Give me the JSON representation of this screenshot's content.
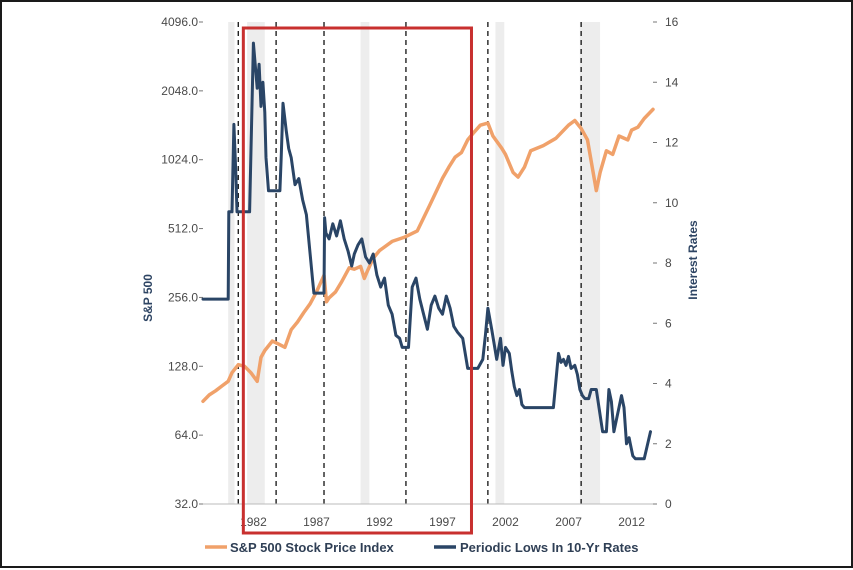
{
  "chart_data": {
    "type": "line",
    "title": "",
    "x_ticks": [
      "1982",
      "1987",
      "1992",
      "1997",
      "2002",
      "2007",
      "2012"
    ],
    "xlim": [
      1978.0,
      2013.7
    ],
    "y_left": {
      "label": "S&P 500",
      "scale": "log2",
      "ylim": [
        32,
        4096
      ],
      "ticks": [
        "32.0",
        "64.0",
        "128.0",
        "256.0",
        "512.0",
        "1024.0",
        "2048.0",
        "4096.0"
      ],
      "tick_values": [
        32,
        64,
        128,
        256,
        512,
        1024,
        2048,
        4096
      ]
    },
    "y_right": {
      "label": "Interest Rates",
      "ylim": [
        0,
        16
      ],
      "ticks": [
        "0",
        "2",
        "4",
        "6",
        "8",
        "10",
        "12",
        "14",
        "16"
      ],
      "tick_values": [
        0,
        2,
        4,
        6,
        8,
        10,
        12,
        14,
        16
      ]
    },
    "recessions": [
      [
        1980.0,
        1980.5
      ],
      [
        1981.5,
        1982.9
      ],
      [
        1990.5,
        1991.2
      ],
      [
        2001.2,
        2001.9
      ],
      [
        2007.9,
        2009.5
      ]
    ],
    "dashed_lines": [
      1980.8,
      1983.8,
      1987.6,
      1994.1,
      2000.6,
      2008.0
    ],
    "highlight_box": {
      "x0": 1981.2,
      "x1": 1999.3
    },
    "series": [
      {
        "name": "S&P 500 Stock Price Index",
        "axis": "left",
        "color": "#f0a16a",
        "x": [
          1978.0,
          1978.5,
          1979.0,
          1979.5,
          1980.0,
          1980.3,
          1980.8,
          1981.3,
          1981.8,
          1982.3,
          1982.6,
          1982.9,
          1983.5,
          1984.0,
          1984.5,
          1985.0,
          1985.5,
          1986.0,
          1986.5,
          1987.0,
          1987.6,
          1987.8,
          1988.0,
          1988.5,
          1989.0,
          1989.6,
          1990.0,
          1990.5,
          1990.8,
          1991.0,
          1991.5,
          1992.0,
          1993.0,
          1994.0,
          1995.0,
          1996.0,
          1997.0,
          1997.5,
          1998.0,
          1998.5,
          1999.0,
          1999.5,
          2000.0,
          2000.6,
          2001.0,
          2001.7,
          2002.0,
          2002.6,
          2003.0,
          2003.5,
          2004.0,
          2005.0,
          2006.0,
          2007.0,
          2007.5,
          2008.0,
          2008.5,
          2009.2,
          2009.5,
          2010.0,
          2010.5,
          2011.0,
          2011.7,
          2012.0,
          2012.5,
          2013.0,
          2013.7
        ],
        "values": [
          90,
          96,
          100,
          105,
          110,
          120,
          130,
          128,
          120,
          110,
          140,
          150,
          165,
          160,
          155,
          185,
          200,
          220,
          240,
          270,
          320,
          245,
          255,
          270,
          300,
          345,
          340,
          350,
          310,
          330,
          380,
          410,
          450,
          470,
          500,
          650,
          850,
          950,
          1050,
          1100,
          1250,
          1350,
          1450,
          1480,
          1300,
          1150,
          1080,
          900,
          860,
          950,
          1120,
          1180,
          1270,
          1450,
          1520,
          1400,
          1250,
          750,
          900,
          1120,
          1080,
          1300,
          1250,
          1380,
          1420,
          1550,
          1700
        ]
      },
      {
        "name": "Periodic Lows In 10-Yr Rates",
        "axis": "right",
        "color": "#2a4566",
        "x": [
          1978.0,
          1980.0,
          1980.05,
          1980.3,
          1980.45,
          1980.6,
          1980.7,
          1981.0,
          1981.4,
          1981.7,
          1982.0,
          1982.3,
          1982.45,
          1982.6,
          1982.75,
          1982.9,
          1983.0,
          1983.2,
          1984.1,
          1984.2,
          1984.35,
          1984.6,
          1984.8,
          1985.0,
          1985.3,
          1985.6,
          1985.9,
          1986.2,
          1986.7,
          1986.8,
          1987.6,
          1987.65,
          1987.75,
          1988.0,
          1988.3,
          1988.6,
          1988.9,
          1989.2,
          1989.5,
          1989.8,
          1990.0,
          1990.3,
          1990.6,
          1990.9,
          1991.2,
          1991.5,
          1991.8,
          1992.1,
          1992.4,
          1992.7,
          1993.0,
          1993.3,
          1993.6,
          1993.8,
          1994.1,
          1994.3,
          1994.6,
          1994.9,
          1995.2,
          1995.5,
          1995.8,
          1996.1,
          1996.4,
          1996.7,
          1997.0,
          1997.3,
          1997.6,
          1997.9,
          1998.2,
          1998.6,
          1999.0,
          1999.2,
          1999.8,
          2000.2,
          2000.4,
          2000.6,
          2000.9,
          2001.1,
          2001.3,
          2001.6,
          2001.8,
          2002.0,
          2002.3,
          2002.5,
          2002.7,
          2002.9,
          2003.1,
          2003.3,
          2003.5,
          2004.5,
          2005.8,
          2006.2,
          2006.4,
          2006.6,
          2006.8,
          2007.0,
          2007.2,
          2007.5,
          2007.7,
          2007.9,
          2008.1,
          2008.3,
          2008.6,
          2008.8,
          2009.2,
          2009.7,
          2010.0,
          2010.2,
          2010.4,
          2010.6,
          2011.2,
          2011.4,
          2011.6,
          2011.8,
          2011.9,
          2012.1,
          2012.3,
          2012.6,
          2013.0,
          2013.5
        ],
        "values": [
          6.8,
          6.8,
          9.7,
          9.7,
          12.6,
          11.0,
          9.7,
          9.7,
          9.7,
          9.7,
          15.3,
          13.8,
          14.6,
          13.2,
          14.0,
          13.0,
          11.5,
          10.4,
          10.4,
          11.5,
          13.3,
          12.4,
          11.8,
          11.5,
          10.6,
          10.8,
          10.1,
          9.6,
          7.4,
          7.0,
          7.0,
          9.5,
          9.0,
          8.8,
          9.3,
          8.9,
          9.4,
          8.8,
          8.4,
          7.9,
          8.3,
          8.6,
          8.8,
          8.2,
          8.0,
          8.3,
          7.6,
          7.2,
          7.5,
          6.6,
          6.3,
          5.6,
          5.5,
          5.2,
          5.2,
          5.2,
          7.2,
          7.5,
          6.8,
          6.3,
          5.8,
          6.6,
          6.9,
          6.5,
          6.3,
          6.9,
          6.5,
          5.9,
          5.7,
          5.5,
          4.5,
          4.5,
          4.5,
          4.8,
          5.6,
          6.5,
          5.8,
          5.3,
          4.8,
          5.5,
          4.6,
          5.2,
          5.0,
          4.4,
          3.9,
          3.6,
          3.8,
          3.3,
          3.2,
          3.2,
          3.2,
          5.0,
          4.7,
          4.8,
          4.6,
          4.9,
          4.5,
          4.6,
          4.3,
          3.8,
          3.6,
          3.5,
          3.5,
          3.8,
          3.8,
          2.4,
          2.4,
          3.8,
          3.4,
          2.4,
          3.6,
          3.2,
          2.0,
          2.2,
          2.0,
          1.6,
          1.5,
          1.5,
          1.5,
          2.4
        ]
      }
    ],
    "legend": [
      {
        "label": "S&P 500 Stock Price Index",
        "color": "#f0a16a"
      },
      {
        "label": "Periodic Lows In 10-Yr Rates",
        "color": "#2a4566"
      }
    ],
    "legend_position": "bottom-center"
  }
}
